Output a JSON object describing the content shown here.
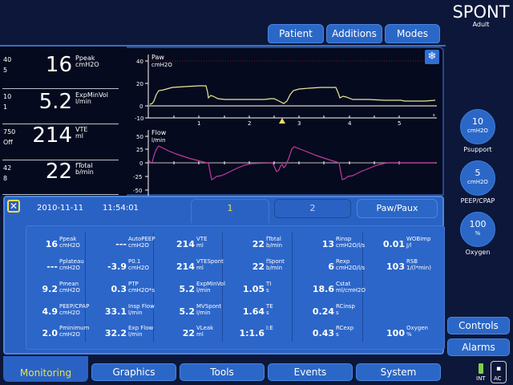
{
  "header": {
    "mode": "SPONT",
    "patient_type": "Adult",
    "buttons": [
      "Patient",
      "Additions",
      "Modes"
    ]
  },
  "left_panel": [
    {
      "high": "40",
      "low": "5",
      "value": "16",
      "name": "Ppeak",
      "unit": "cmH2O"
    },
    {
      "high": "10",
      "low": "1",
      "value": "5.2",
      "name": "ExpMinVol",
      "unit": "l/min"
    },
    {
      "high": "750",
      "low": "Off",
      "value": "214",
      "name": "VTE",
      "unit": "ml"
    },
    {
      "high": "42",
      "low": "8",
      "value": "22",
      "name": "fTotal",
      "unit": "b/min"
    }
  ],
  "waveforms": {
    "paw": {
      "label": "Paw",
      "unit": "cmH2O",
      "yticks": [
        "40",
        "20",
        "0",
        "-10"
      ],
      "xticks": [
        "1",
        "2",
        "3",
        "4",
        "5"
      ],
      "xunit": "s",
      "color": "#e8e89a"
    },
    "flow": {
      "label": "Flow",
      "unit": "l/min",
      "yticks": [
        "50",
        "25",
        "0",
        "-25",
        "-50"
      ],
      "color": "#c03aa0"
    },
    "freeze_icon": "snowflake-icon"
  },
  "right_controls": [
    {
      "value": "10",
      "unit": "cmH2O",
      "label": "Psupport"
    },
    {
      "value": "5",
      "unit": "cmH2O",
      "label": "PEEP/CPAP"
    },
    {
      "value": "100",
      "unit": "%",
      "label": "Oxygen"
    }
  ],
  "side_buttons": [
    "Controls",
    "Alarms"
  ],
  "monitoring": {
    "date": "2010-11-11",
    "time": "11:54:01",
    "tabs": [
      "1",
      "2",
      "Paw/Paux"
    ],
    "columns": [
      [
        {
          "value": "16",
          "name": "Ppeak",
          "unit": "cmH2O"
        },
        {
          "value": "---",
          "name": "Pplateau",
          "unit": "cmH2O"
        },
        {
          "value": "9.2",
          "name": "Pmean",
          "unit": "cmH2O"
        },
        {
          "value": "4.9",
          "name": "PEEP/CPAP",
          "unit": "cmH2O"
        },
        {
          "value": "2.0",
          "name": "Pminimum",
          "unit": "cmH2O"
        }
      ],
      [
        {
          "value": "---",
          "name": "AutoPEEP",
          "unit": "cmH2O"
        },
        {
          "value": "-3.9",
          "name": "P0.1",
          "unit": "cmH2O"
        },
        {
          "value": "0.3",
          "name": "PTP",
          "unit": "cmH2O*s"
        },
        {
          "value": "33.1",
          "name": "Insp Flow",
          "unit": "l/min"
        },
        {
          "value": "32.2",
          "name": "Exp Flow",
          "unit": "l/min"
        }
      ],
      [
        {
          "value": "214",
          "name": "VTE",
          "unit": "ml"
        },
        {
          "value": "214",
          "name": "VTESpont",
          "unit": "ml"
        },
        {
          "value": "5.2",
          "name": "ExpMinVol",
          "unit": "l/min"
        },
        {
          "value": "5.2",
          "name": "MVSpont",
          "unit": "l/min"
        },
        {
          "value": "22",
          "name": "VLeak",
          "unit": "ml"
        }
      ],
      [
        {
          "value": "22",
          "name": "fTotal",
          "unit": "b/min"
        },
        {
          "value": "22",
          "name": "fSpont",
          "unit": "b/min"
        },
        {
          "value": "1.05",
          "name": "TI",
          "unit": "s"
        },
        {
          "value": "1.64",
          "name": "TE",
          "unit": "s"
        },
        {
          "value": "1:1.6",
          "name": "I:E",
          "unit": ""
        }
      ],
      [
        {
          "value": "13",
          "name": "Rinsp",
          "unit": "cmH2O/l/s"
        },
        {
          "value": "6",
          "name": "Rexp",
          "unit": "cmH2O/l/s"
        },
        {
          "value": "18.6",
          "name": "Cstat",
          "unit": "ml/cmH2O"
        },
        {
          "value": "0.24",
          "name": "RCinsp",
          "unit": "s"
        },
        {
          "value": "0.43",
          "name": "RCexp",
          "unit": "s"
        }
      ],
      [
        {
          "value": "0.01",
          "name": "WOBimp",
          "unit": "J/l"
        },
        {
          "value": "103",
          "name": "RSB",
          "unit": "1/(l*min)"
        },
        {
          "value": "",
          "name": "",
          "unit": ""
        },
        {
          "value": "",
          "name": "",
          "unit": ""
        },
        {
          "value": "100",
          "name": "Oxygen",
          "unit": "%"
        }
      ]
    ]
  },
  "bottom_tabs": [
    "Monitoring",
    "Graphics",
    "Tools",
    "Events",
    "System"
  ],
  "status": {
    "battery_label": "INT",
    "power_label": "AC"
  },
  "colors": {
    "accent": "#2b67c6",
    "active_tab_text": "#e7e24d",
    "background": "#0c1739"
  }
}
